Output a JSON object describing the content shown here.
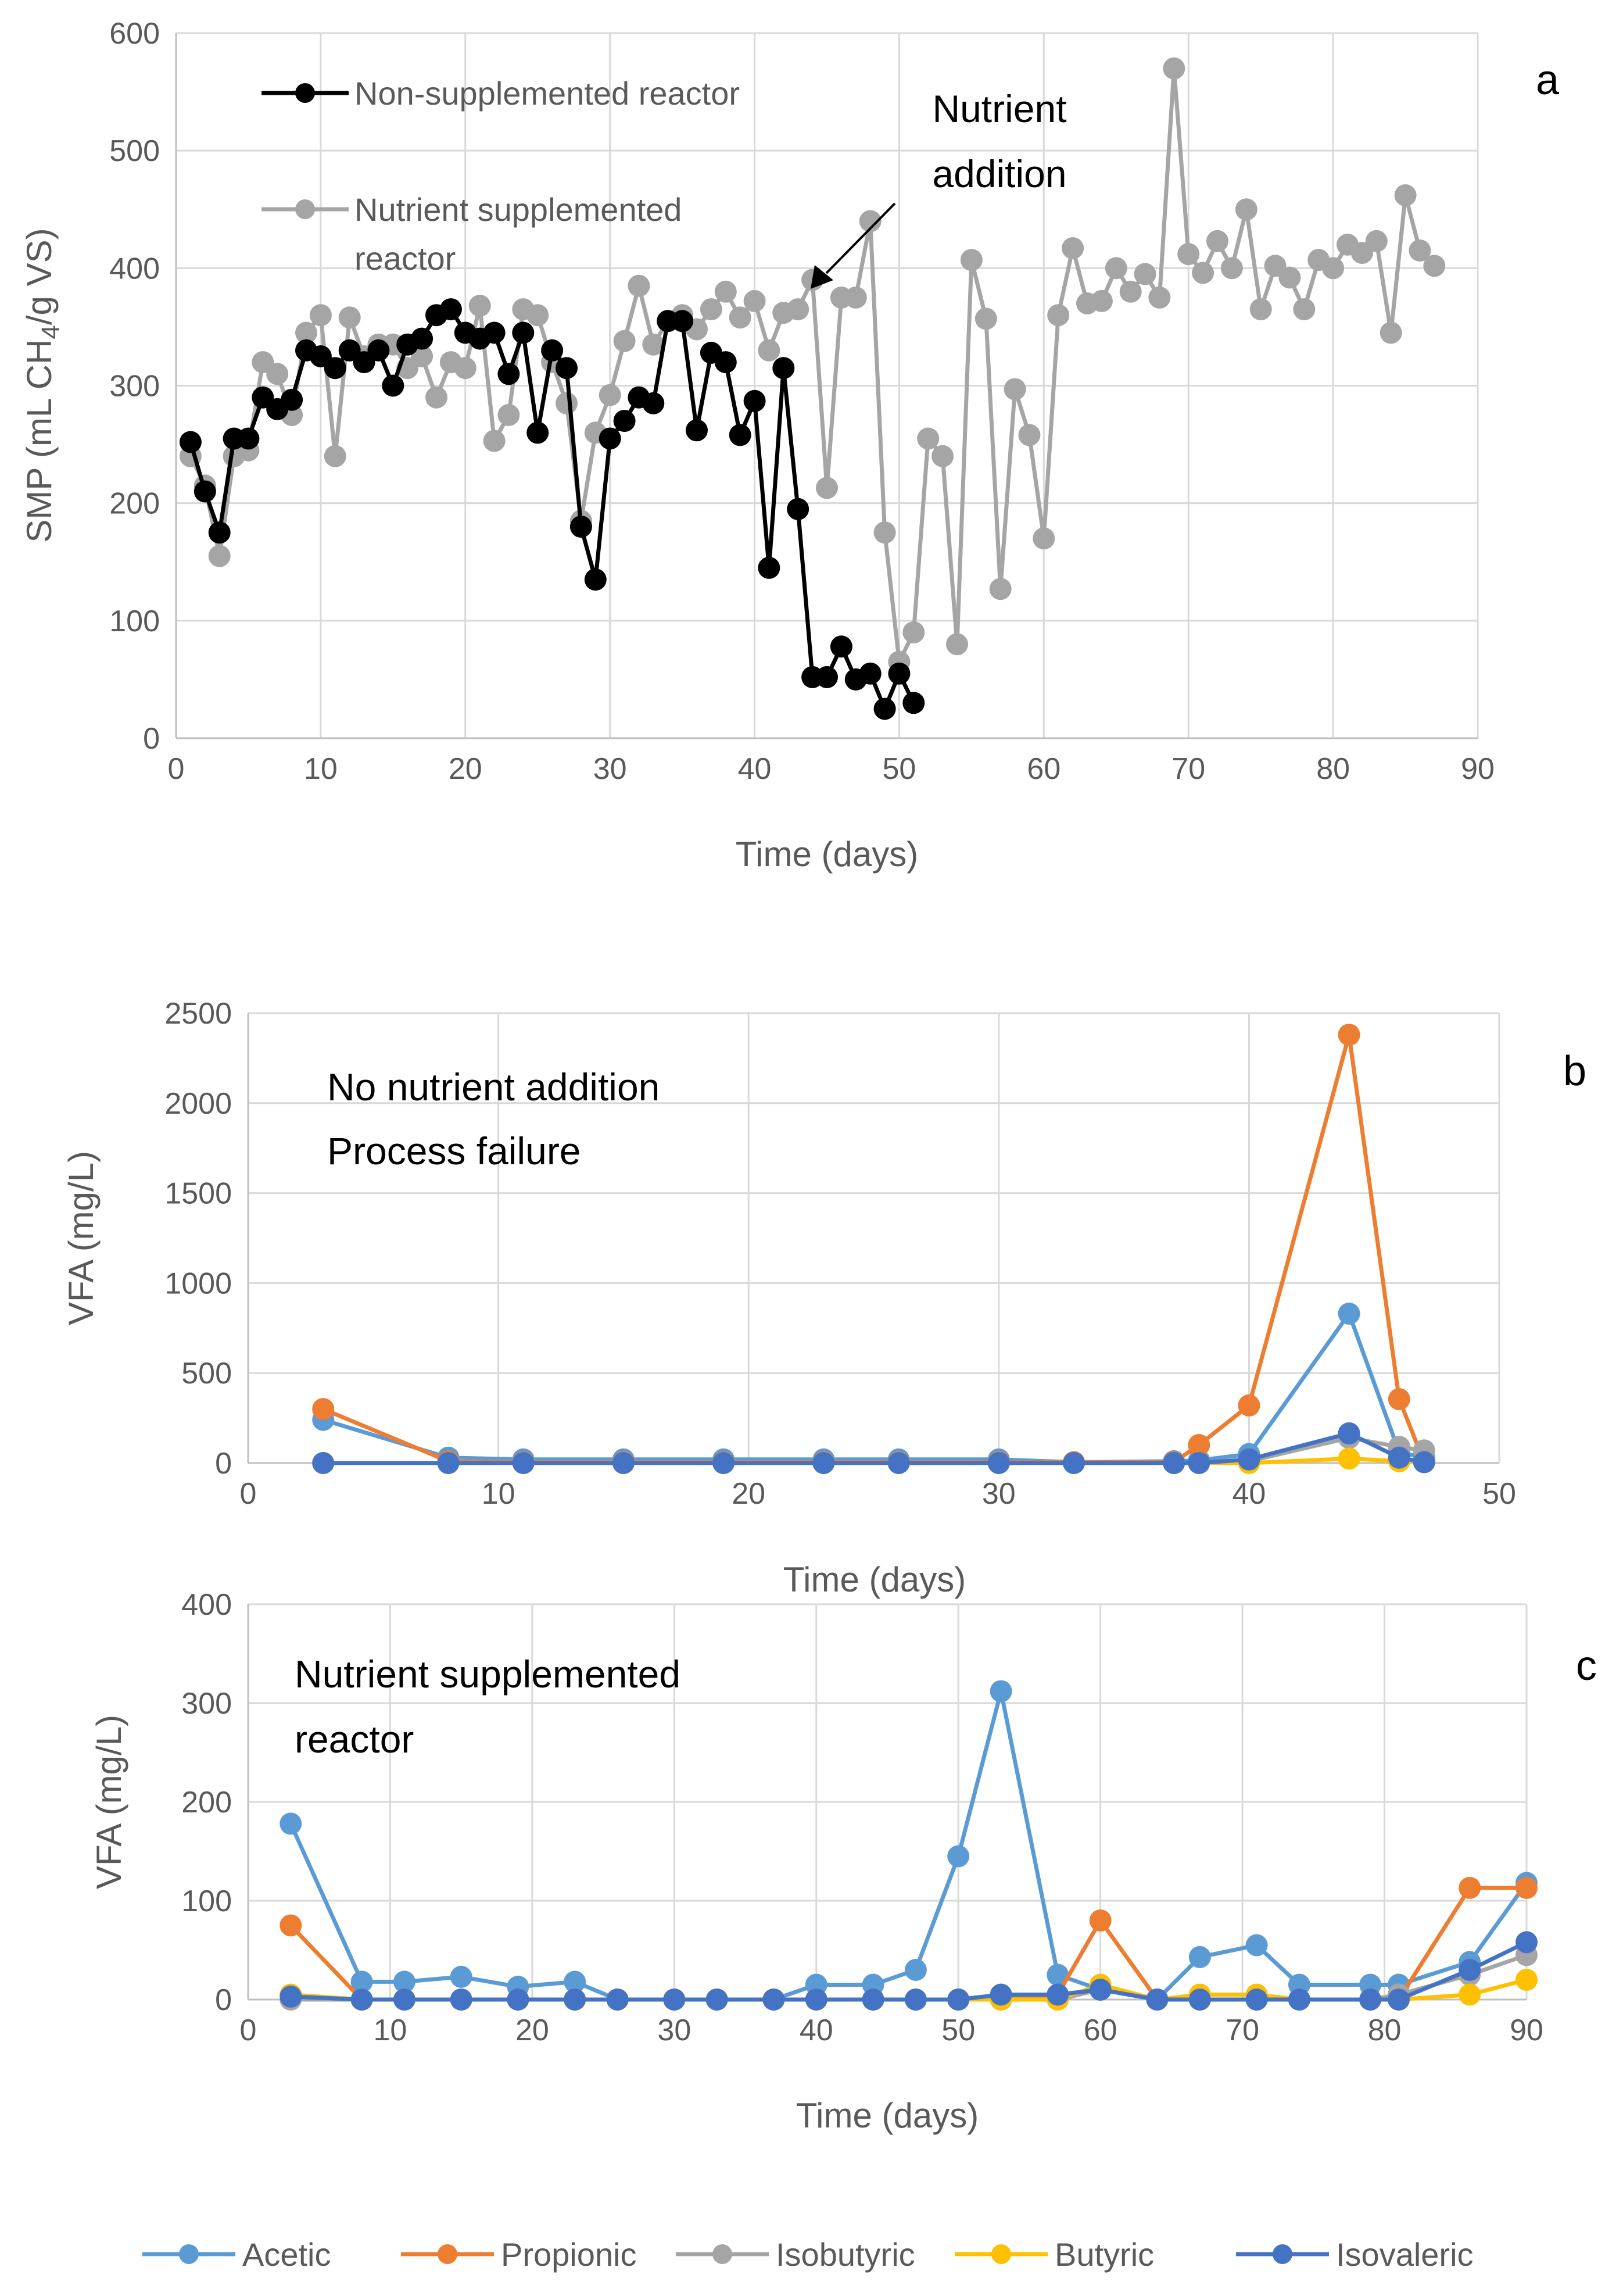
{
  "colors": {
    "acetic": "#5B9BD5",
    "propionic": "#ED7D31",
    "isobutyric": "#A5A5A5",
    "butyric": "#FFC000",
    "isovaleric": "#4472C4",
    "non_supplemented": "#000000",
    "supplemented": "#A5A5A5"
  },
  "legend": {
    "items": [
      {
        "name": "Acetic",
        "color": "#5B9BD5"
      },
      {
        "name": "Propionic",
        "color": "#ED7D31"
      },
      {
        "name": "Isobutyric",
        "color": "#A5A5A5"
      },
      {
        "name": "Butyric",
        "color": "#FFC000"
      },
      {
        "name": "Isovaleric",
        "color": "#4472C4"
      }
    ]
  },
  "chart_data": [
    {
      "id": "a",
      "panel_label": "a",
      "type": "line",
      "xlabel": "Time (days)",
      "ylabel_main": "SMP (mL CH",
      "ylabel_sub": "4",
      "ylabel_tail": "/g VS)",
      "xlim": [
        0,
        90
      ],
      "ylim": [
        0,
        600
      ],
      "xticks": [
        0,
        10,
        20,
        30,
        40,
        50,
        60,
        70,
        80,
        90
      ],
      "yticks": [
        0,
        100,
        200,
        300,
        400,
        500,
        600
      ],
      "annotation": {
        "line1": "Nutrient",
        "line2": "addition",
        "points_to": [
          44,
          390
        ]
      },
      "legend": [
        {
          "name": "Non-supplemented reactor",
          "color": "#000000"
        },
        {
          "name_line1": "Nutrient supplemented",
          "name_line2": "reactor",
          "color": "#A5A5A5"
        }
      ],
      "series": [
        {
          "name": "Nutrient supplemented reactor",
          "color": "#A5A5A5",
          "x": [
            1,
            2,
            3,
            4,
            5,
            6,
            7,
            8,
            9,
            10,
            11,
            12,
            13,
            14,
            15,
            16,
            17,
            18,
            19,
            20,
            21,
            22,
            23,
            24,
            25,
            26,
            27,
            28,
            29,
            30,
            31,
            32,
            33,
            34,
            35,
            36,
            37,
            38,
            39,
            40,
            41,
            42,
            43,
            44,
            45,
            46,
            47,
            48,
            49,
            50,
            51,
            52,
            53,
            54,
            55,
            56,
            57,
            58,
            59,
            60,
            61,
            62,
            63,
            64,
            65,
            66,
            67,
            68,
            69,
            70,
            71,
            72,
            73,
            74,
            75,
            76,
            77,
            78,
            79,
            80,
            81,
            82,
            83,
            84,
            85,
            86,
            87
          ],
          "values": [
            240,
            215,
            155,
            240,
            245,
            320,
            310,
            275,
            345,
            360,
            240,
            358,
            325,
            335,
            335,
            315,
            325,
            290,
            320,
            315,
            368,
            253,
            275,
            365,
            360,
            320,
            285,
            185,
            260,
            292,
            338,
            385,
            335,
            355,
            360,
            348,
            365,
            380,
            358,
            372,
            330,
            362,
            365,
            390,
            213,
            375,
            375,
            440,
            175,
            65,
            90,
            255,
            240,
            80,
            407,
            357,
            127,
            297,
            258,
            170,
            360,
            417,
            370,
            372,
            400,
            380,
            395,
            375,
            570,
            412,
            396,
            423,
            400,
            450,
            365,
            402,
            392,
            365,
            407,
            400,
            420,
            413,
            423,
            345,
            462,
            415,
            402
          ]
        },
        {
          "name": "Non-supplemented reactor",
          "color": "#000000",
          "x": [
            1,
            2,
            3,
            4,
            5,
            6,
            7,
            8,
            9,
            10,
            11,
            12,
            13,
            14,
            15,
            16,
            17,
            18,
            19,
            20,
            21,
            22,
            23,
            24,
            25,
            26,
            27,
            28,
            29,
            30,
            31,
            32,
            33,
            34,
            35,
            36,
            37,
            38,
            39,
            40,
            41,
            42,
            43,
            44,
            45,
            46,
            47,
            48,
            49,
            50,
            51
          ],
          "values": [
            252,
            210,
            175,
            255,
            255,
            290,
            280,
            288,
            330,
            325,
            315,
            330,
            320,
            330,
            300,
            335,
            340,
            360,
            365,
            345,
            340,
            345,
            310,
            345,
            260,
            330,
            315,
            180,
            135,
            255,
            270,
            290,
            285,
            355,
            355,
            262,
            328,
            320,
            258,
            287,
            145,
            315,
            195,
            52,
            52,
            78,
            50,
            55,
            25,
            55,
            30
          ]
        }
      ]
    },
    {
      "id": "b",
      "panel_label": "b",
      "type": "line",
      "xlabel": "Time (days)",
      "ylabel": "VFA (mg/L)",
      "xlim": [
        0,
        50
      ],
      "ylim": [
        0,
        2500
      ],
      "xticks": [
        0,
        10,
        20,
        30,
        40,
        50
      ],
      "yticks": [
        0,
        500,
        1000,
        1500,
        2000,
        2500
      ],
      "annotation": {
        "line1": "No nutrient addition",
        "line2": "Process failure"
      },
      "x": [
        3,
        8,
        11,
        15,
        19,
        23,
        26,
        30,
        33,
        37,
        38,
        40,
        44,
        46,
        47
      ],
      "series": [
        {
          "name": "Acetic",
          "color": "#5B9BD5",
          "values": [
            240,
            30,
            20,
            20,
            20,
            20,
            20,
            20,
            5,
            10,
            15,
            50,
            830,
            60,
            30
          ]
        },
        {
          "name": "Propionic",
          "color": "#ED7D31",
          "values": [
            300,
            10,
            5,
            5,
            5,
            5,
            5,
            5,
            5,
            5,
            100,
            320,
            2380,
            355,
            5
          ]
        },
        {
          "name": "Isobutyric",
          "color": "#A5A5A5",
          "values": [
            0,
            0,
            0,
            0,
            0,
            0,
            0,
            0,
            0,
            0,
            0,
            10,
            140,
            90,
            70
          ]
        },
        {
          "name": "Butyric",
          "color": "#FFC000",
          "values": [
            0,
            0,
            0,
            0,
            0,
            0,
            0,
            0,
            0,
            0,
            0,
            0,
            25,
            10,
            5
          ]
        },
        {
          "name": "Isovaleric",
          "color": "#4472C4",
          "values": [
            0,
            0,
            0,
            0,
            0,
            0,
            0,
            0,
            0,
            0,
            0,
            20,
            165,
            30,
            5
          ]
        }
      ]
    },
    {
      "id": "c",
      "panel_label": "c",
      "type": "line",
      "xlabel": "Time (days)",
      "ylabel": "VFA (mg/L)",
      "xlim": [
        0,
        90
      ],
      "ylim": [
        0,
        400
      ],
      "xticks": [
        0,
        10,
        20,
        30,
        40,
        50,
        60,
        70,
        80,
        90
      ],
      "yticks": [
        0,
        100,
        200,
        300,
        400
      ],
      "annotation": {
        "line1": "Nutrient supplemented",
        "line2": "reactor"
      },
      "x": [
        3,
        8,
        11,
        15,
        19,
        23,
        26,
        30,
        33,
        37,
        40,
        44,
        47,
        50,
        53,
        57,
        60,
        64,
        67,
        71,
        74,
        79,
        81,
        86,
        90
      ],
      "series": [
        {
          "name": "Acetic",
          "color": "#5B9BD5",
          "values": [
            178,
            18,
            18,
            23,
            13,
            18,
            0,
            0,
            0,
            0,
            15,
            15,
            30,
            145,
            312,
            25,
            10,
            0,
            43,
            55,
            15,
            15,
            15,
            38,
            118
          ]
        },
        {
          "name": "Propionic",
          "color": "#ED7D31",
          "values": [
            75,
            0,
            0,
            0,
            0,
            0,
            0,
            0,
            0,
            0,
            0,
            0,
            0,
            0,
            0,
            5,
            80,
            0,
            0,
            0,
            0,
            0,
            0,
            113,
            113
          ]
        },
        {
          "name": "Isobutyric",
          "color": "#A5A5A5",
          "values": [
            0,
            0,
            0,
            0,
            0,
            0,
            0,
            0,
            0,
            0,
            0,
            0,
            0,
            0,
            0,
            0,
            10,
            0,
            0,
            0,
            0,
            0,
            5,
            25,
            45
          ]
        },
        {
          "name": "Butyric",
          "color": "#FFC000",
          "values": [
            5,
            0,
            0,
            0,
            0,
            0,
            0,
            0,
            0,
            0,
            0,
            0,
            0,
            0,
            0,
            0,
            15,
            0,
            5,
            5,
            0,
            0,
            0,
            5,
            20
          ]
        },
        {
          "name": "Isovaleric",
          "color": "#4472C4",
          "values": [
            3,
            0,
            0,
            0,
            0,
            0,
            0,
            0,
            0,
            0,
            0,
            0,
            0,
            0,
            5,
            5,
            10,
            0,
            0,
            0,
            0,
            0,
            0,
            30,
            58
          ]
        }
      ]
    }
  ]
}
